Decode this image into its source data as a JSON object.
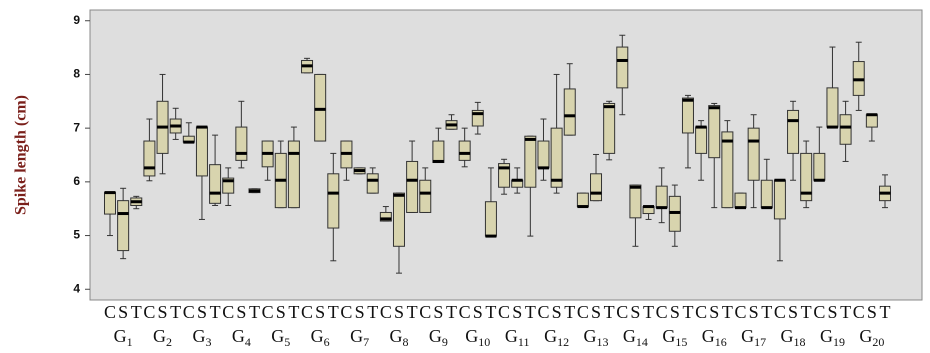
{
  "chart_data": {
    "type": "box",
    "y_label": "Spike length (cm)",
    "ylim": [
      3.8,
      9.2
    ],
    "yticks": [
      4,
      5,
      6,
      7,
      8,
      9
    ],
    "color": "#d8d4ae",
    "categories": [
      "C",
      "S",
      "T",
      "C",
      "S",
      "T",
      "C",
      "S",
      "T",
      "C",
      "S",
      "T",
      "C",
      "S",
      "T",
      "C",
      "S",
      "T",
      "C",
      "S",
      "T",
      "C",
      "S",
      "T",
      "C",
      "S",
      "T",
      "C",
      "S",
      "T",
      "C",
      "S",
      "T",
      "C",
      "S",
      "T",
      "C",
      "S",
      "T",
      "C",
      "S",
      "T",
      "C",
      "S",
      "T",
      "C",
      "S",
      "T",
      "C",
      "S",
      "T",
      "C",
      "S",
      "T",
      "C",
      "S",
      "T",
      "C",
      "S",
      "T"
    ],
    "groups": [
      {
        "name": "G",
        "sub": "1"
      },
      {
        "name": "G",
        "sub": "2"
      },
      {
        "name": "G",
        "sub": "3"
      },
      {
        "name": "G",
        "sub": "4"
      },
      {
        "name": "G",
        "sub": "5"
      },
      {
        "name": "G",
        "sub": "6"
      },
      {
        "name": "G",
        "sub": "7"
      },
      {
        "name": "G",
        "sub": "8"
      },
      {
        "name": "G",
        "sub": "9"
      },
      {
        "name": "G",
        "sub": "10"
      },
      {
        "name": "G",
        "sub": "11"
      },
      {
        "name": "G",
        "sub": "12"
      },
      {
        "name": "G",
        "sub": "13"
      },
      {
        "name": "G",
        "sub": "14"
      },
      {
        "name": "G",
        "sub": "15"
      },
      {
        "name": "G",
        "sub": "16"
      },
      {
        "name": "G",
        "sub": "17"
      },
      {
        "name": "G",
        "sub": "18"
      },
      {
        "name": "G",
        "sub": "19"
      },
      {
        "name": "G",
        "sub": "20"
      }
    ],
    "boxes": [
      [
        5.0,
        5.4,
        5.8,
        5.8,
        5.8
      ],
      [
        4.57,
        4.72,
        5.41,
        5.65,
        5.88
      ],
      [
        5.5,
        5.56,
        5.63,
        5.7,
        5.73
      ],
      [
        6.02,
        6.11,
        6.26,
        6.76,
        7.17
      ],
      [
        6.15,
        6.53,
        7.02,
        7.5,
        8.0
      ],
      [
        6.79,
        6.91,
        7.04,
        7.17,
        7.37
      ],
      [
        6.74,
        6.74,
        6.74,
        6.85,
        7.1
      ],
      [
        5.3,
        6.11,
        7.02,
        7.02,
        7.02
      ],
      [
        5.56,
        5.6,
        5.79,
        6.32,
        6.87
      ],
      [
        5.56,
        5.79,
        6.02,
        6.07,
        6.26
      ],
      [
        6.26,
        6.4,
        6.53,
        7.02,
        7.5
      ],
      [
        5.8,
        5.8,
        5.83,
        5.87,
        5.87
      ],
      [
        6.03,
        6.28,
        6.53,
        6.76,
        6.76
      ],
      [
        5.52,
        5.52,
        6.03,
        6.53,
        6.76
      ],
      [
        5.52,
        5.52,
        6.53,
        6.76,
        7.02
      ],
      [
        8.03,
        8.03,
        8.16,
        8.26,
        8.3
      ],
      [
        6.76,
        6.76,
        7.35,
        8.0,
        8.0
      ],
      [
        4.53,
        5.14,
        5.79,
        6.15,
        6.53
      ],
      [
        6.03,
        6.26,
        6.53,
        6.76,
        6.76
      ],
      [
        6.15,
        6.15,
        6.21,
        6.26,
        6.26
      ],
      [
        5.79,
        5.79,
        6.03,
        6.15,
        6.26
      ],
      [
        5.27,
        5.27,
        5.31,
        5.43,
        5.54
      ],
      [
        4.3,
        4.8,
        5.75,
        5.79,
        5.79
      ],
      [
        5.43,
        5.43,
        6.03,
        6.38,
        6.76
      ],
      [
        5.43,
        5.43,
        5.79,
        6.03,
        6.26
      ],
      [
        6.36,
        6.36,
        6.38,
        6.76,
        7.0
      ],
      [
        6.98,
        6.98,
        7.06,
        7.14,
        7.25
      ],
      [
        6.28,
        6.4,
        6.53,
        6.76,
        7.0
      ],
      [
        6.89,
        7.04,
        7.27,
        7.33,
        7.48
      ],
      [
        4.99,
        4.99,
        4.99,
        5.63,
        6.26
      ],
      [
        5.77,
        5.9,
        6.26,
        6.34,
        6.42
      ],
      [
        5.79,
        5.9,
        6.03,
        6.03,
        6.26
      ],
      [
        4.99,
        5.9,
        6.79,
        6.85,
        6.85
      ],
      [
        6.03,
        6.26,
        6.26,
        6.76,
        7.17
      ],
      [
        5.79,
        5.9,
        6.03,
        7.0,
        8.0
      ],
      [
        6.87,
        6.87,
        7.23,
        7.73,
        8.2
      ],
      [
        5.54,
        5.54,
        5.54,
        5.79,
        5.79
      ],
      [
        5.65,
        5.65,
        5.79,
        6.15,
        6.51
      ],
      [
        6.41,
        6.53,
        7.4,
        7.46,
        7.5
      ],
      [
        7.25,
        7.75,
        8.26,
        8.51,
        8.73
      ],
      [
        4.8,
        5.33,
        5.9,
        5.94,
        5.94
      ],
      [
        5.3,
        5.41,
        5.54,
        5.54,
        5.54
      ],
      [
        5.24,
        5.52,
        5.52,
        5.92,
        6.26
      ],
      [
        4.8,
        5.08,
        5.43,
        5.73,
        5.94
      ],
      [
        6.26,
        6.91,
        7.52,
        7.56,
        7.61
      ],
      [
        6.03,
        6.53,
        7.02,
        7.02,
        7.14
      ],
      [
        5.52,
        6.45,
        7.38,
        7.42,
        7.46
      ],
      [
        5.52,
        5.52,
        6.76,
        6.93,
        7.14
      ],
      [
        5.52,
        5.52,
        5.52,
        5.79,
        5.79
      ],
      [
        5.52,
        6.03,
        6.76,
        7.0,
        7.25
      ],
      [
        5.52,
        5.52,
        5.52,
        6.03,
        6.42
      ],
      [
        4.53,
        5.31,
        6.03,
        6.03,
        6.03
      ],
      [
        6.03,
        6.53,
        7.14,
        7.33,
        7.5
      ],
      [
        5.52,
        5.65,
        5.79,
        6.53,
        6.76
      ],
      [
        6.03,
        6.03,
        6.03,
        6.53,
        7.02
      ],
      [
        7.02,
        7.02,
        7.02,
        7.75,
        8.51
      ],
      [
        6.38,
        6.7,
        7.02,
        7.25,
        7.5
      ],
      [
        7.33,
        7.61,
        7.9,
        8.24,
        8.6
      ],
      [
        6.76,
        7.02,
        7.25,
        7.25,
        7.25
      ],
      [
        5.52,
        5.65,
        5.79,
        5.92,
        6.13
      ]
    ]
  }
}
